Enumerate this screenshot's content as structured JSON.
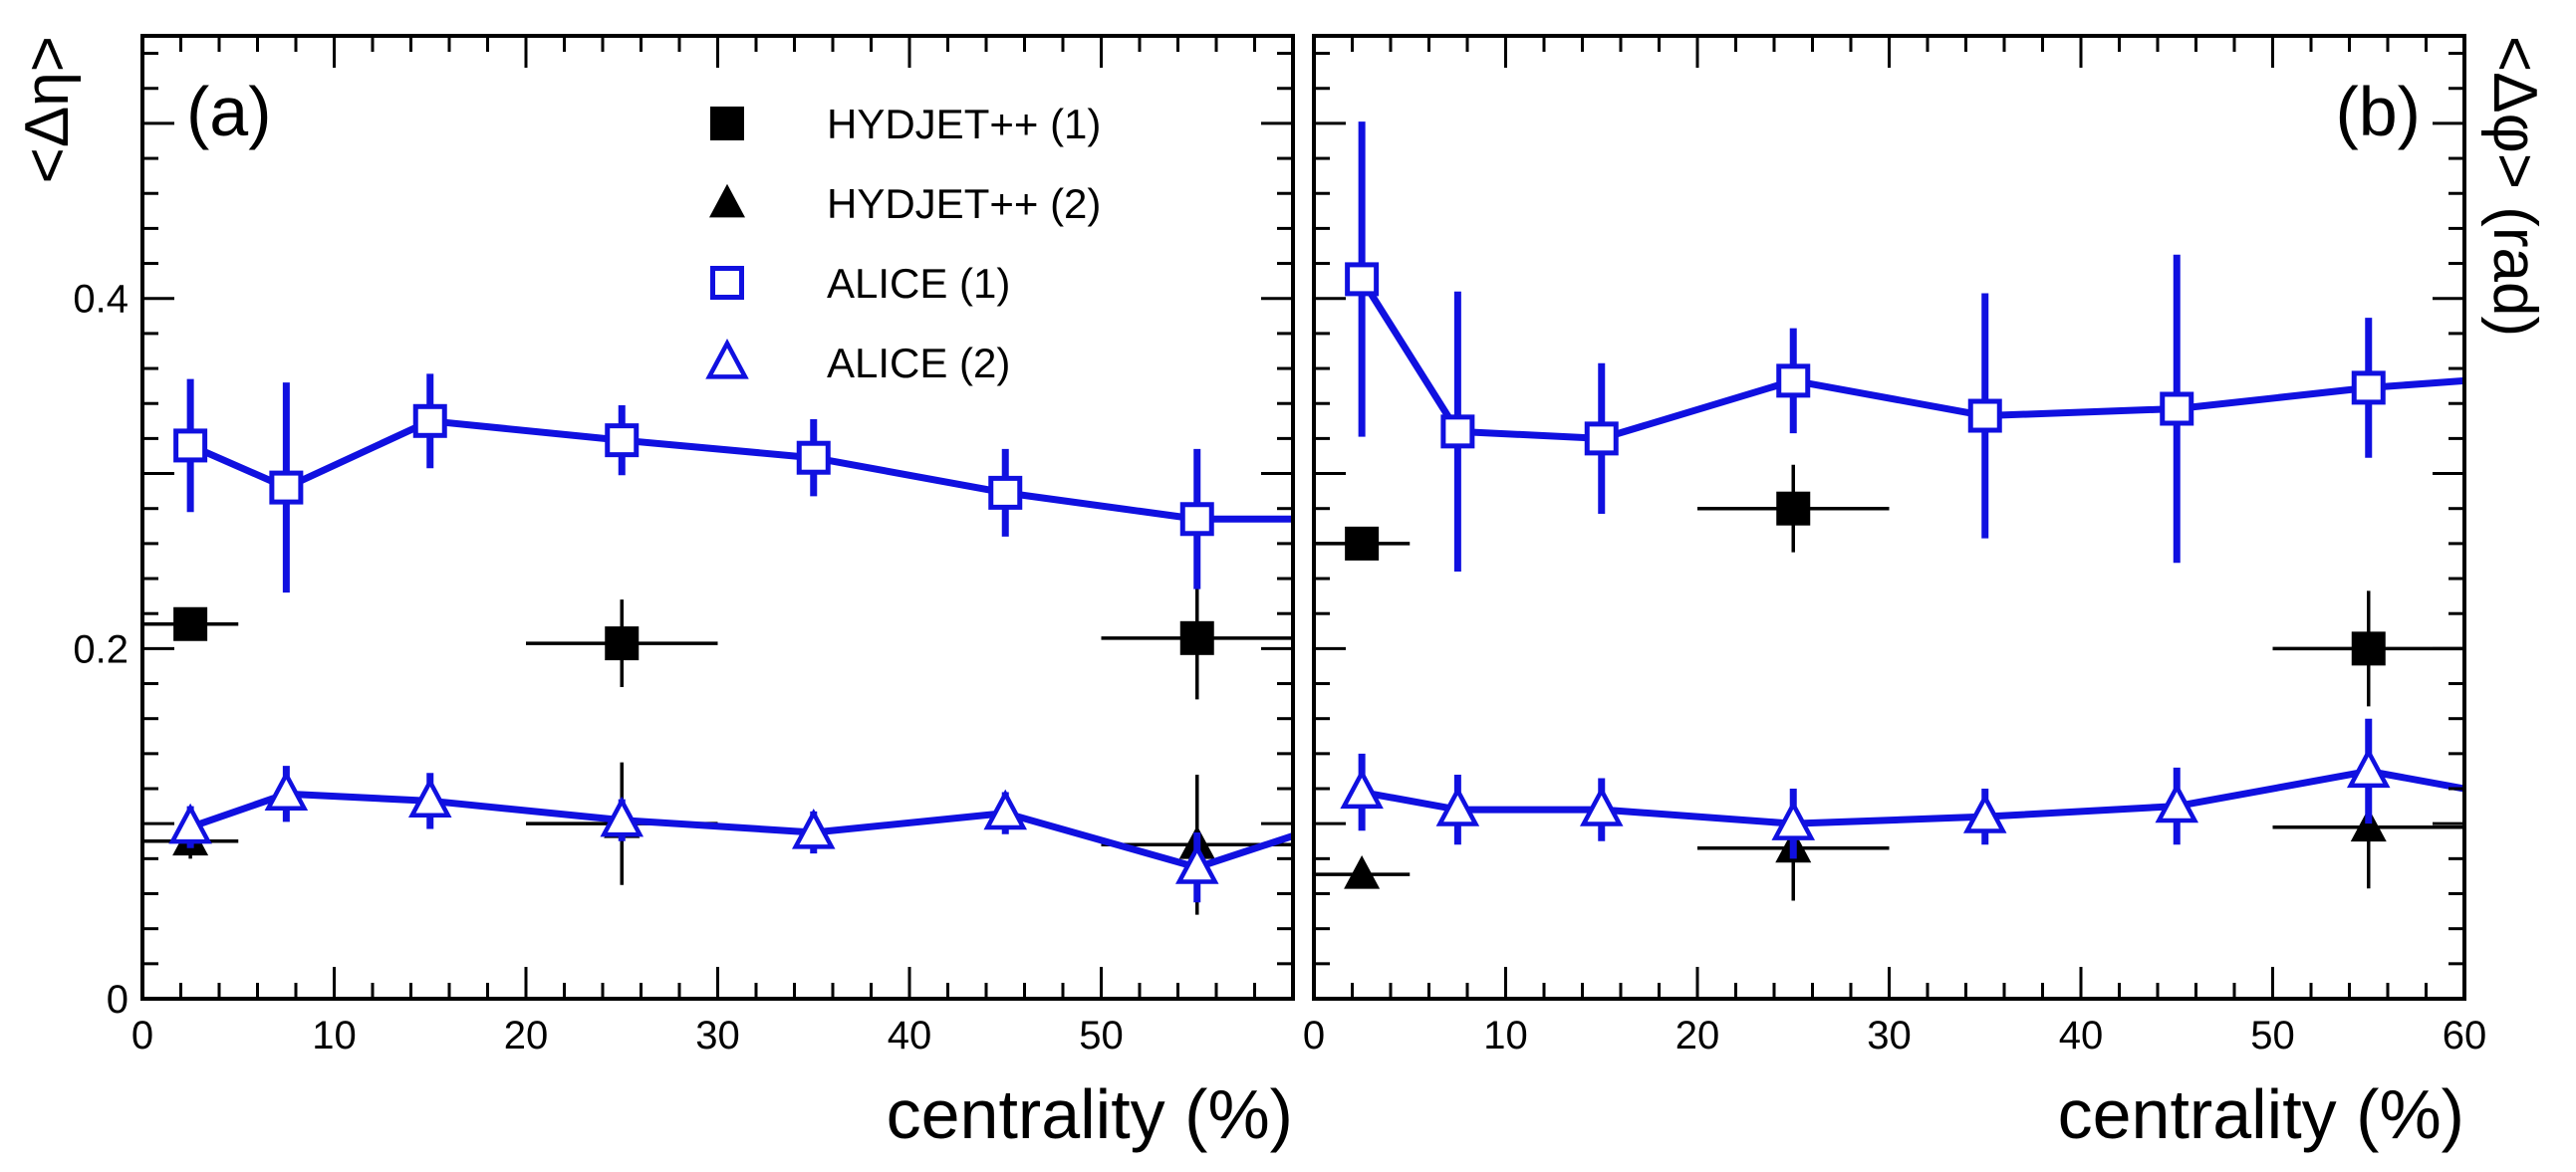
{
  "chart_data": [
    {
      "panel_label": "(a)",
      "type": "scatter",
      "xlabel": "centrality (%)",
      "ylabel": "<Δη>",
      "xlim": [
        0,
        60
      ],
      "ylim": [
        0,
        0.55
      ],
      "x_ticks": [
        "0",
        "10",
        "20",
        "30",
        "40",
        "50"
      ],
      "y_ticks": [
        "0",
        "0.2",
        "0.4"
      ],
      "series": [
        {
          "name": "HYDJET++ (1)",
          "marker": "square-filled",
          "color": "#000000",
          "line": false,
          "points": [
            {
              "x": 2.5,
              "y": 0.214,
              "xerr": 2.5,
              "yerr": 0.0
            },
            {
              "x": 25,
              "y": 0.203,
              "xerr": 5,
              "yerr": 0.025
            },
            {
              "x": 55,
              "y": 0.206,
              "xerr": 5,
              "yerr": 0.035
            }
          ]
        },
        {
          "name": "HYDJET++ (2)",
          "marker": "triangle-filled",
          "color": "#000000",
          "line": false,
          "points": [
            {
              "x": 2.5,
              "y": 0.09,
              "xerr": 2.5,
              "yerr": 0.01
            },
            {
              "x": 25,
              "y": 0.1,
              "xerr": 5,
              "yerr": 0.035
            },
            {
              "x": 55,
              "y": 0.088,
              "xerr": 5,
              "yerr": 0.04
            }
          ]
        },
        {
          "name": "ALICE (1)",
          "marker": "square-open",
          "color": "#1010e0",
          "line": true,
          "points": [
            {
              "x": 2.5,
              "y": 0.316,
              "yerr": 0.038
            },
            {
              "x": 7.5,
              "y": 0.292,
              "yerr": 0.06
            },
            {
              "x": 15,
              "y": 0.33,
              "yerr": 0.027
            },
            {
              "x": 25,
              "y": 0.319,
              "yerr": 0.02
            },
            {
              "x": 35,
              "y": 0.309,
              "yerr": 0.022
            },
            {
              "x": 45,
              "y": 0.289,
              "yerr": 0.025
            },
            {
              "x": 55,
              "y": 0.274,
              "yerr": 0.04
            }
          ],
          "line_end": {
            "x": 60,
            "y": 0.274
          }
        },
        {
          "name": "ALICE (2)",
          "marker": "triangle-open",
          "color": "#1010e0",
          "line": true,
          "points": [
            {
              "x": 2.5,
              "y": 0.098,
              "yerr": 0.012
            },
            {
              "x": 7.5,
              "y": 0.117,
              "yerr": 0.016
            },
            {
              "x": 15,
              "y": 0.113,
              "yerr": 0.016
            },
            {
              "x": 25,
              "y": 0.102,
              "yerr": 0.012
            },
            {
              "x": 35,
              "y": 0.095,
              "yerr": 0.012
            },
            {
              "x": 45,
              "y": 0.106,
              "yerr": 0.012
            },
            {
              "x": 55,
              "y": 0.075,
              "yerr": 0.02
            }
          ],
          "line_end": {
            "x": 60,
            "y": 0.093
          }
        }
      ]
    },
    {
      "panel_label": "(b)",
      "type": "scatter",
      "xlabel": "centrality (%)",
      "ylabel": "<Δφ> (rad)",
      "xlim": [
        0,
        60
      ],
      "ylim": [
        0,
        0.55
      ],
      "x_ticks": [
        "0",
        "10",
        "20",
        "30",
        "40",
        "50",
        "60"
      ],
      "y_ticks": [],
      "series": [
        {
          "name": "HYDJET++ (1)",
          "marker": "square-filled",
          "color": "#000000",
          "line": false,
          "points": [
            {
              "x": 2.5,
              "y": 0.26,
              "xerr": 2.5,
              "yerr": 0.0
            },
            {
              "x": 25,
              "y": 0.28,
              "xerr": 5,
              "yerr": 0.025
            },
            {
              "x": 55,
              "y": 0.2,
              "xerr": 5,
              "yerr": 0.033
            }
          ]
        },
        {
          "name": "HYDJET++ (2)",
          "marker": "triangle-filled",
          "color": "#000000",
          "line": false,
          "points": [
            {
              "x": 2.5,
              "y": 0.071,
              "xerr": 2.5,
              "yerr": 0.0
            },
            {
              "x": 25,
              "y": 0.086,
              "xerr": 5,
              "yerr": 0.03
            },
            {
              "x": 55,
              "y": 0.098,
              "xerr": 5,
              "yerr": 0.035
            }
          ]
        },
        {
          "name": "ALICE (1)",
          "marker": "square-open",
          "color": "#1010e0",
          "line": true,
          "points": [
            {
              "x": 2.5,
              "y": 0.411,
              "yerr": 0.09
            },
            {
              "x": 7.5,
              "y": 0.324,
              "yerr": 0.08
            },
            {
              "x": 15,
              "y": 0.32,
              "yerr": 0.043
            },
            {
              "x": 25,
              "y": 0.353,
              "yerr": 0.03
            },
            {
              "x": 35,
              "y": 0.333,
              "yerr": 0.07
            },
            {
              "x": 45,
              "y": 0.337,
              "yerr": 0.088
            },
            {
              "x": 55,
              "y": 0.349,
              "yerr": 0.04
            }
          ],
          "line_end": {
            "x": 60,
            "y": 0.353
          }
        },
        {
          "name": "ALICE (2)",
          "marker": "triangle-open",
          "color": "#1010e0",
          "line": true,
          "points": [
            {
              "x": 2.5,
              "y": 0.118,
              "yerr": 0.022
            },
            {
              "x": 7.5,
              "y": 0.108,
              "yerr": 0.02
            },
            {
              "x": 15,
              "y": 0.108,
              "yerr": 0.018
            },
            {
              "x": 25,
              "y": 0.1,
              "yerr": 0.02
            },
            {
              "x": 35,
              "y": 0.104,
              "yerr": 0.016
            },
            {
              "x": 45,
              "y": 0.11,
              "yerr": 0.022
            },
            {
              "x": 55,
              "y": 0.13,
              "yerr": 0.03
            }
          ],
          "line_end": {
            "x": 60,
            "y": 0.12
          }
        }
      ]
    }
  ],
  "legend": {
    "placement": "top-center of panel (a)",
    "entries": [
      "HYDJET++ (1)",
      "HYDJET++ (2)",
      "ALICE (1)",
      "ALICE (2)"
    ]
  }
}
